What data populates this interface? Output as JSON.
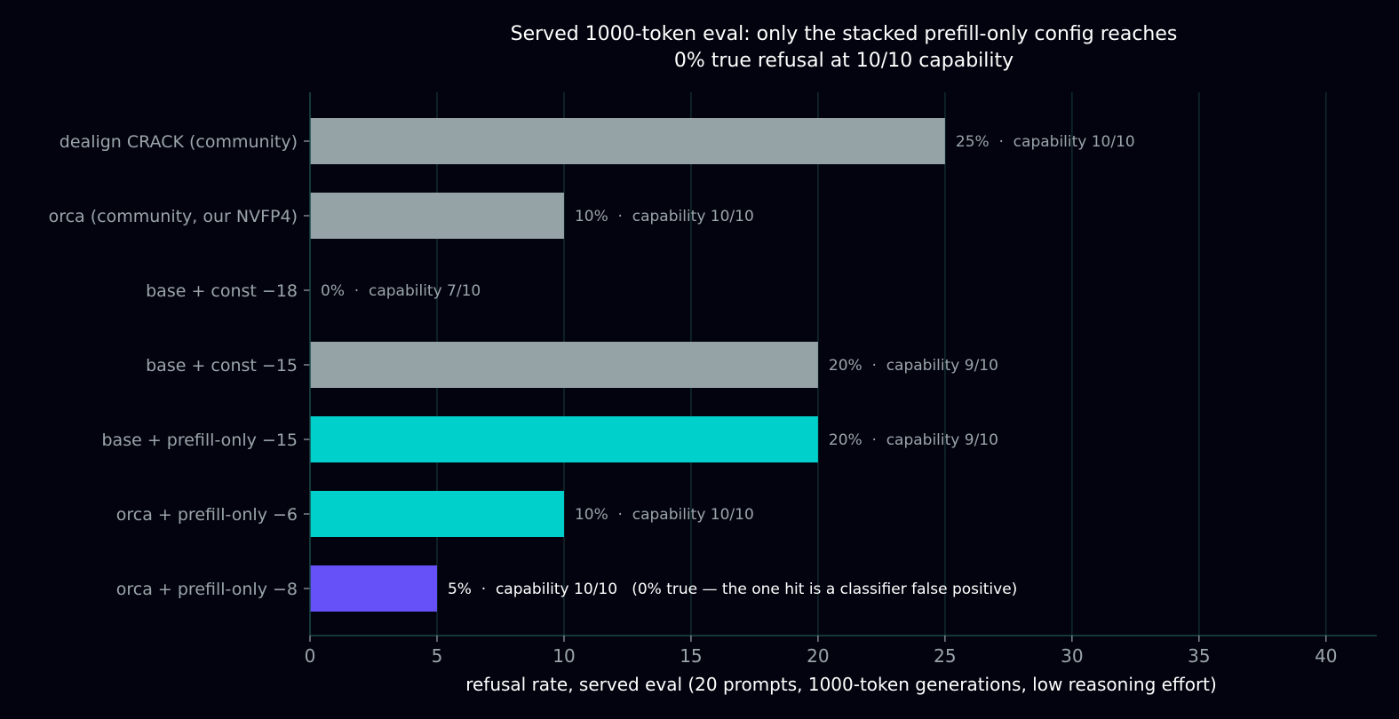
{
  "chart_data": {
    "type": "bar",
    "orientation": "horizontal",
    "title_line1": "Served 1000-token eval: only the stacked prefill-only config reaches",
    "title_line2": "0% true refusal at 10/10 capability",
    "xlabel": "refusal rate, served eval (20 prompts, 1000-token generations, low reasoning effort)",
    "ylabel": "",
    "xlim": [
      0,
      42
    ],
    "xticks": [
      0,
      5,
      10,
      15,
      20,
      25,
      30,
      35,
      40
    ],
    "grid": "vertical",
    "categories": [
      "dealign CRACK (community)",
      "orca (community, our NVFP4)",
      "base + const −18",
      "base + const −15",
      "base + prefill-only −15",
      "orca + prefill-only −6",
      "orca + prefill-only −8"
    ],
    "values": [
      25,
      10,
      0,
      20,
      20,
      10,
      5
    ],
    "bar_colors": [
      "#95a3a6",
      "#95a3a6",
      "#95a3a6",
      "#95a3a6",
      "#00d0cb",
      "#00d0cb",
      "#6650f8"
    ],
    "data_labels": [
      "25%  ·  capability 10/10",
      "10%  ·  capability 10/10",
      "0%  ·  capability 7/10",
      "20%  ·  capability 9/10",
      "20%  ·  capability 9/10",
      "10%  ·  capability 10/10",
      "5%  ·  capability 10/10   (0% true — the one hit is a classifier false positive)"
    ],
    "label_colors": [
      "#9aa5a9",
      "#9aa5a9",
      "#9aa5a9",
      "#9aa5a9",
      "#9aa5a9",
      "#9aa5a9",
      "#ffffff"
    ],
    "colors": {
      "background": "#03030f",
      "grid": "#102a2e",
      "axis": "#1a4a48",
      "text_muted": "#9aa5a9",
      "text_bright": "#ffffff"
    }
  }
}
